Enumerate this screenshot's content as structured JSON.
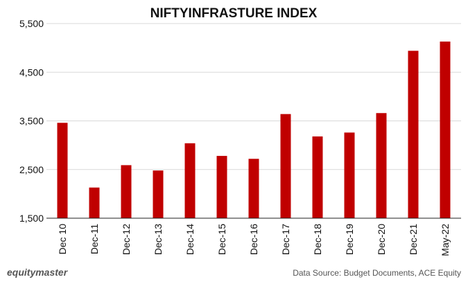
{
  "chart_data": {
    "type": "bar",
    "title": "NIFTYINFRASTURE  INDEX",
    "xlabel": "",
    "ylabel": "",
    "categories": [
      "Dec 10",
      "Dec-11",
      "Dec-12",
      "Dec-13",
      "Dec-14",
      "Dec-15",
      "Dec-16",
      "Dec-17",
      "Dec-18",
      "Dec-19",
      "Dec-20",
      "Dec-21",
      "May-22"
    ],
    "values": [
      3460,
      2130,
      2590,
      2480,
      3040,
      2780,
      2720,
      3640,
      3180,
      3260,
      3660,
      4940,
      5130
    ],
    "ylim": [
      1500,
      5500
    ],
    "yticks": [
      1500,
      2500,
      3500,
      4500,
      5500
    ],
    "ytick_labels": [
      "1,500",
      "2,500",
      "3,500",
      "4,500",
      "5,500"
    ],
    "bar_color": "#c00000",
    "grid": true,
    "legend": "none"
  },
  "footer": {
    "brand": "equitymaster",
    "source": "Data Source:  Budget Documents, ACE Equity"
  },
  "colors": {
    "grid": "#d9d9d9",
    "axis": "#222222"
  }
}
